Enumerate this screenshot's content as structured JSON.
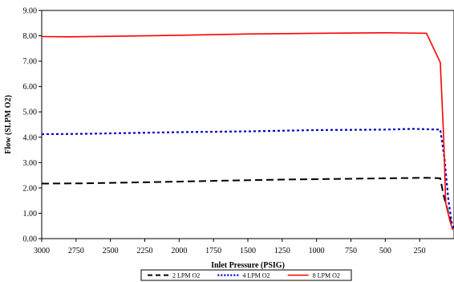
{
  "chart_data": {
    "type": "line",
    "xlabel": "Inlet Pressure (PSIG)",
    "ylabel": "Flow (SLPM O2)",
    "xlim": [
      3000,
      0
    ],
    "x_reversed": true,
    "ylim": [
      0,
      9
    ],
    "xticks": [
      3000,
      2750,
      2500,
      2250,
      2000,
      1750,
      1500,
      1250,
      1000,
      750,
      500,
      250
    ],
    "xtick_labels": [
      "3000",
      "2750",
      "2500",
      "2250",
      "2000",
      "1750",
      "1500",
      "1250",
      "1000",
      "750",
      "500",
      "250"
    ],
    "yticks": [
      0,
      1,
      2,
      3,
      4,
      5,
      6,
      7,
      8,
      9
    ],
    "ytick_labels": [
      "0.00",
      "1.00",
      "2.00",
      "3.00",
      "4.00",
      "5.00",
      "6.00",
      "7.00",
      "8.00",
      "9.00"
    ],
    "grid": false,
    "legend_position": "bottom",
    "series": [
      {
        "name": "2 LPM O2",
        "color": "#000000",
        "style": "dashed",
        "points": [
          [
            3000,
            2.17
          ],
          [
            2700,
            2.18
          ],
          [
            2250,
            2.22
          ],
          [
            1750,
            2.28
          ],
          [
            1250,
            2.33
          ],
          [
            750,
            2.36
          ],
          [
            500,
            2.38
          ],
          [
            200,
            2.4
          ],
          [
            100,
            2.38
          ],
          [
            75,
            1.7
          ],
          [
            40,
            1.0
          ],
          [
            10,
            0.4
          ]
        ]
      },
      {
        "name": "4 LPM O2",
        "color": "#0000cc",
        "style": "dotted",
        "points": [
          [
            3000,
            4.12
          ],
          [
            2750,
            4.13
          ],
          [
            2500,
            4.15
          ],
          [
            2000,
            4.2
          ],
          [
            1500,
            4.23
          ],
          [
            1000,
            4.28
          ],
          [
            500,
            4.3
          ],
          [
            300,
            4.33
          ],
          [
            100,
            4.3
          ],
          [
            70,
            3.2
          ],
          [
            40,
            1.5
          ],
          [
            15,
            0.6
          ],
          [
            0,
            0.4
          ]
        ]
      },
      {
        "name": "8 LPM O2",
        "color": "#ff0000",
        "style": "solid",
        "points": [
          [
            3000,
            7.97
          ],
          [
            2800,
            7.96
          ],
          [
            2500,
            7.98
          ],
          [
            2000,
            8.02
          ],
          [
            1500,
            8.07
          ],
          [
            1000,
            8.1
          ],
          [
            500,
            8.12
          ],
          [
            200,
            8.1
          ],
          [
            100,
            6.95
          ],
          [
            75,
            4.0
          ],
          [
            60,
            1.4
          ],
          [
            30,
            0.7
          ],
          [
            10,
            0.35
          ]
        ]
      }
    ]
  }
}
